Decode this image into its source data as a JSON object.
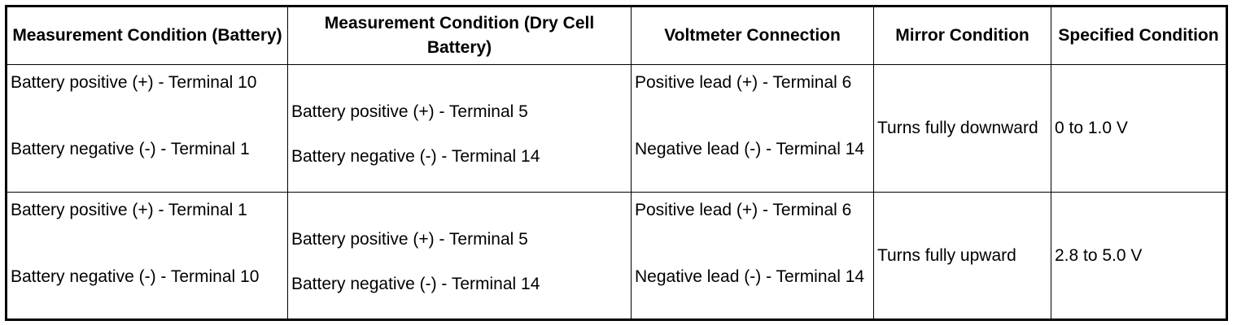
{
  "table": {
    "headers": [
      "Measurement Condition (Battery)",
      "Measurement Condition (Dry Cell Battery)",
      "Voltmeter Connection",
      "Mirror Condition",
      "Specified Condition"
    ],
    "rows": [
      {
        "battery": [
          "Battery positive (+) - Terminal 10",
          "Battery negative (-) - Terminal 1"
        ],
        "dry_cell": [
          "Battery positive (+) - Terminal 5",
          "Battery negative (-) - Terminal 14"
        ],
        "voltmeter": [
          "Positive lead (+) - Terminal 6",
          "Negative lead (-) - Terminal 14"
        ],
        "mirror": "Turns fully downward",
        "specified": "0 to 1.0 V"
      },
      {
        "battery": [
          "Battery positive (+) - Terminal 1",
          "Battery negative (-) - Terminal 10"
        ],
        "dry_cell": [
          "Battery positive (+) - Terminal 5",
          "Battery negative (-) - Terminal 14"
        ],
        "voltmeter": [
          "Positive lead (+) - Terminal 6",
          "Negative lead (-) - Terminal 14"
        ],
        "mirror": "Turns fully upward",
        "specified": "2.8 to 5.0 V"
      }
    ]
  }
}
